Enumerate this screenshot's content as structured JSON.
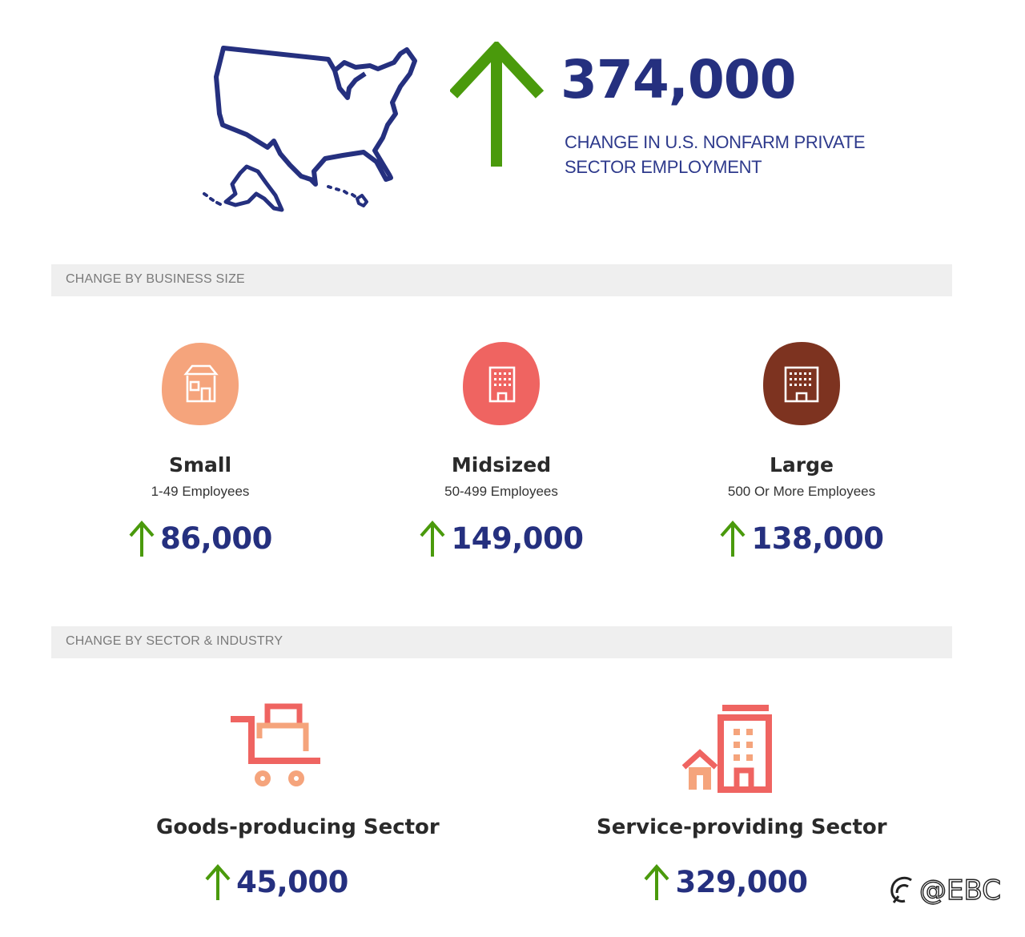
{
  "hero": {
    "value": "374,000",
    "caption_line1": "CHANGE IN U.S. NONFARM PRIVATE",
    "caption_line2": "SECTOR EMPLOYMENT",
    "arrow_color": "#4a9a0c",
    "value_color": "#25307f"
  },
  "sections": {
    "business_size": "CHANGE BY BUSINESS SIZE",
    "sector_industry": "CHANGE BY SECTOR & INDUSTRY"
  },
  "business_sizes": [
    {
      "name": "Small",
      "range": "1-49 Employees",
      "change": "86,000",
      "color": "#f5a47c",
      "icon": "store-icon"
    },
    {
      "name": "Midsized",
      "range": "50-499 Employees",
      "change": "149,000",
      "color": "#ef6461",
      "icon": "office-building-icon"
    },
    {
      "name": "Large",
      "range": "500 Or More Employees",
      "change": "138,000",
      "color": "#7d3320",
      "icon": "office-building-icon"
    }
  ],
  "sectors": [
    {
      "name": "Goods-producing Sector",
      "change": "45,000",
      "icon": "cart-icon"
    },
    {
      "name": "Service-providing Sector",
      "change": "329,000",
      "icon": "buildings-icon"
    }
  ],
  "watermark": "@EBC"
}
